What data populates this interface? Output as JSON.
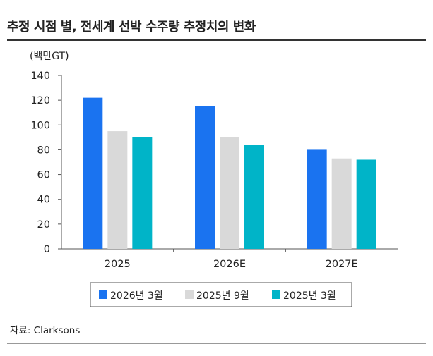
{
  "title": "추정 시점 별, 전세계 선박 수주량 추정치의 변화",
  "unit_label": "(백만GT)",
  "source": "자료: Clarksons",
  "chart_data": {
    "type": "bar",
    "categories": [
      "2025",
      "2026E",
      "2027E"
    ],
    "series": [
      {
        "name": "2026년 3월",
        "values": [
          122,
          115,
          80
        ],
        "color": "#1a73f0"
      },
      {
        "name": "2025년 9월",
        "values": [
          95,
          90,
          73
        ],
        "color": "#d9d9d9"
      },
      {
        "name": "2025년 3월",
        "values": [
          90,
          84,
          72
        ],
        "color": "#00b4c8"
      }
    ],
    "ylim": [
      0,
      140
    ],
    "yticks": [
      0,
      20,
      40,
      60,
      80,
      100,
      120,
      140
    ],
    "xlabel": "",
    "ylabel": "",
    "grid": false,
    "legend_position": "bottom"
  }
}
